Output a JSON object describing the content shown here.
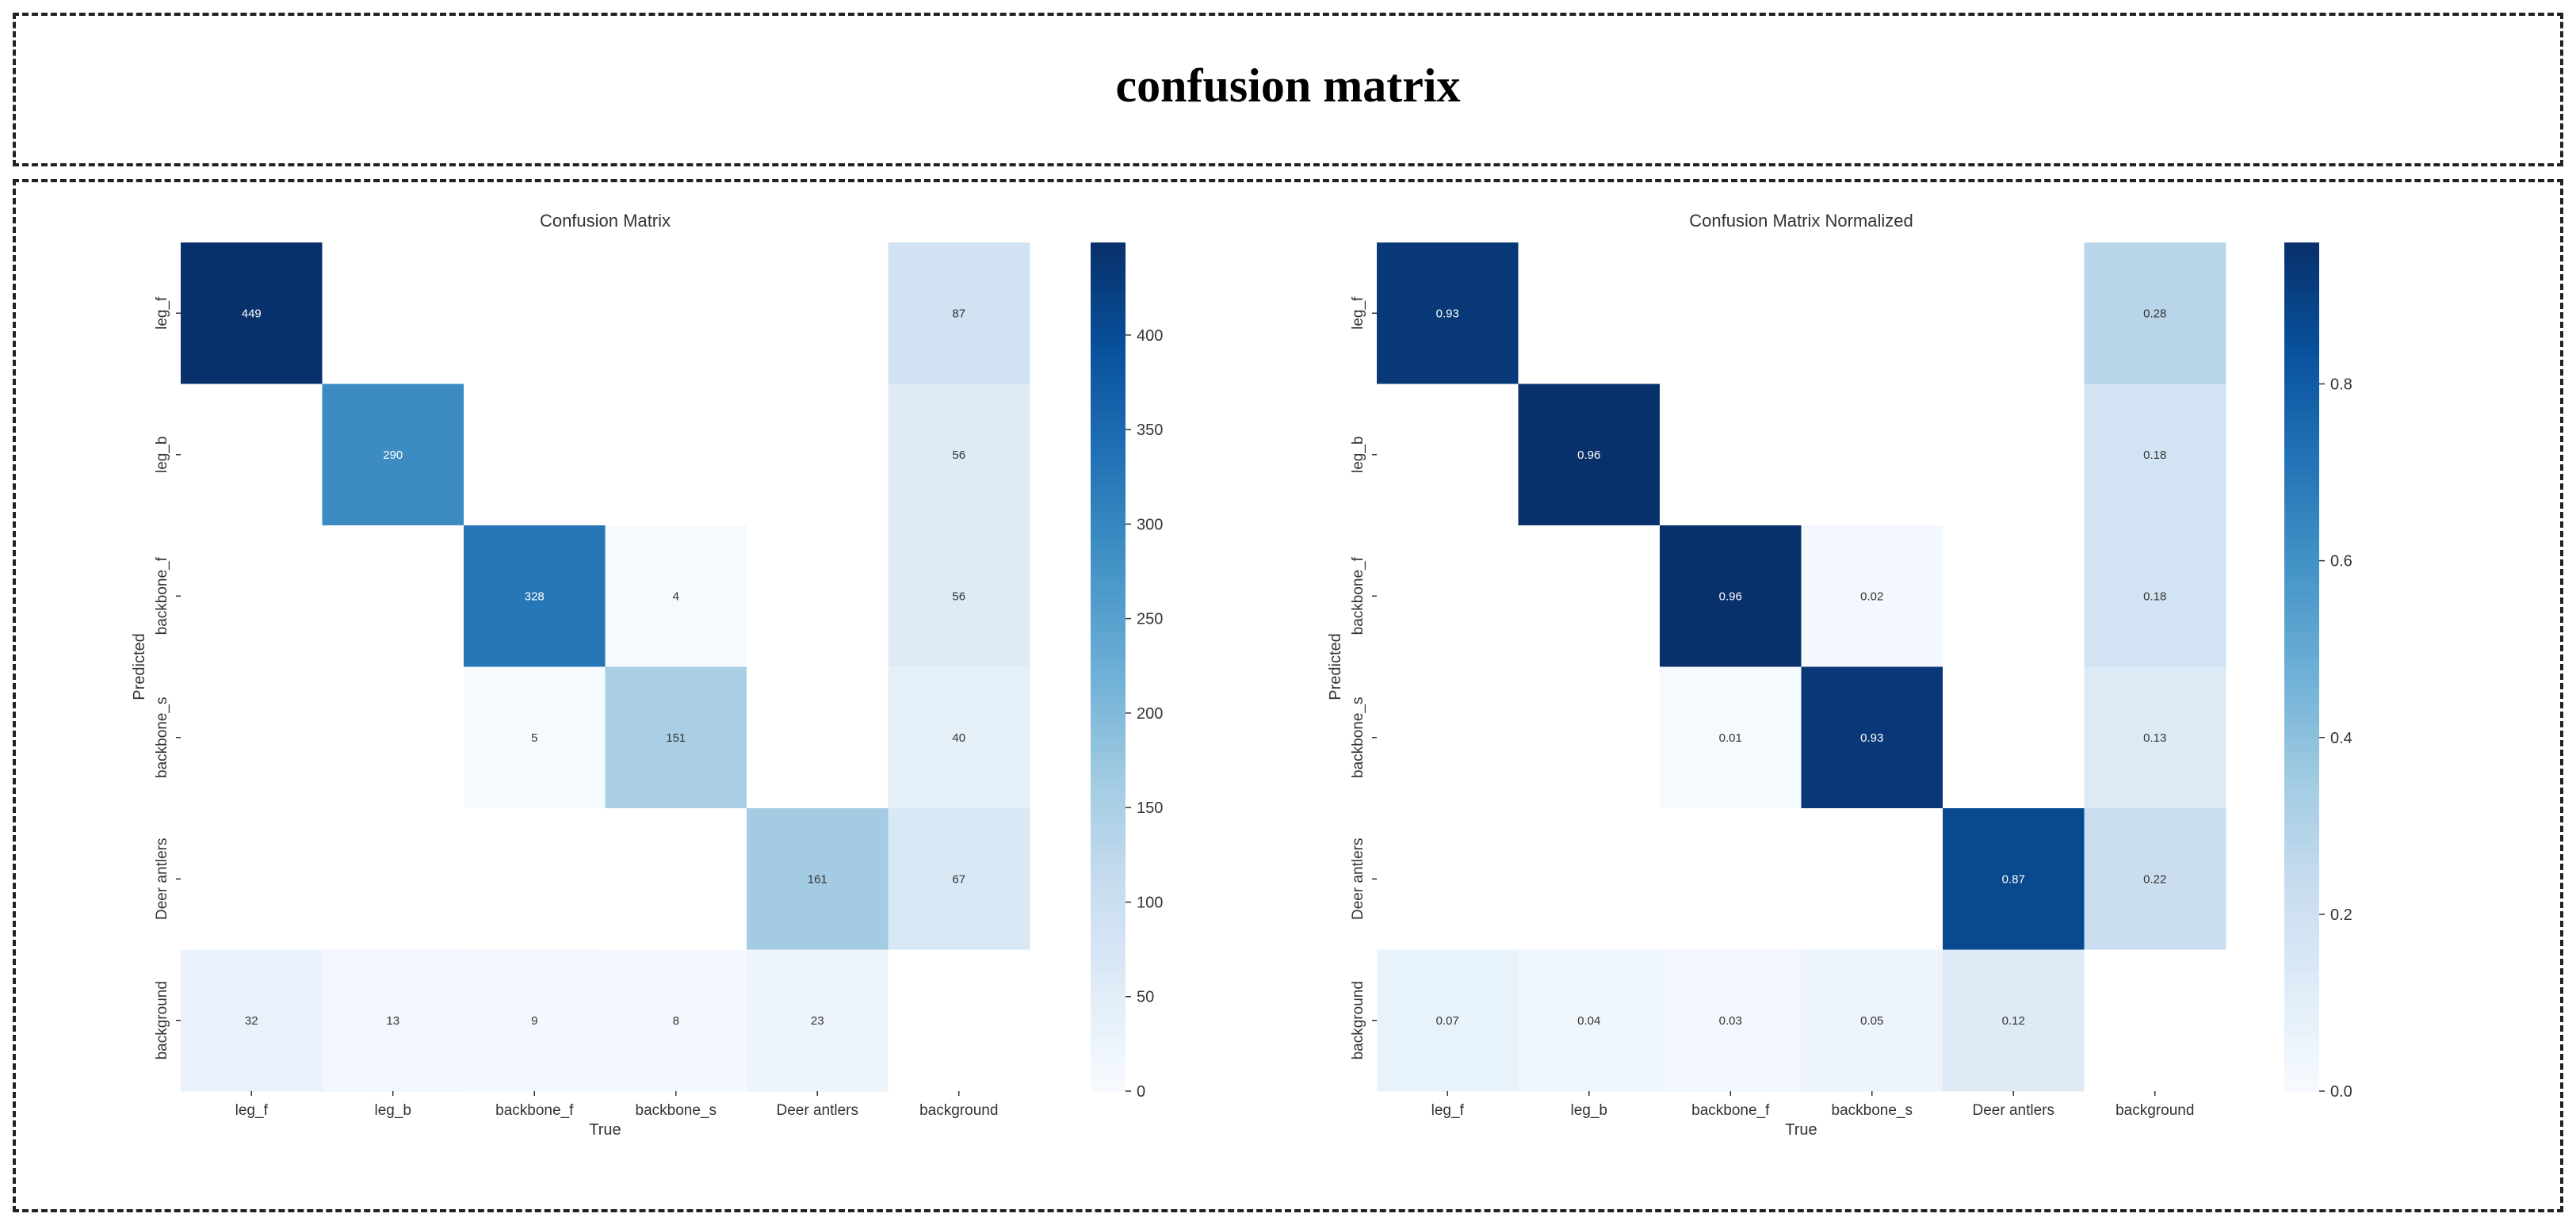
{
  "header": {
    "title": "confusion matrix"
  },
  "colors": {
    "low": "#f7fbff",
    "mid": "#6baed6",
    "high": "#08306b",
    "text": "#333333"
  },
  "chart_data": [
    {
      "type": "heatmap",
      "title": "Confusion Matrix",
      "xlabel": "True",
      "ylabel": "Predicted",
      "x_categories": [
        "leg_f",
        "leg_b",
        "backbone_f",
        "backbone_s",
        "Deer antlers",
        "background"
      ],
      "y_categories": [
        "leg_f",
        "leg_b",
        "backbone_f",
        "backbone_s",
        "Deer antlers",
        "background"
      ],
      "values": [
        [
          449,
          null,
          null,
          null,
          null,
          87
        ],
        [
          null,
          290,
          null,
          null,
          null,
          56
        ],
        [
          null,
          null,
          328,
          4,
          null,
          56
        ],
        [
          null,
          null,
          5,
          151,
          null,
          40
        ],
        [
          null,
          null,
          null,
          null,
          161,
          67
        ],
        [
          32,
          13,
          9,
          8,
          23,
          null
        ]
      ],
      "labels": [
        [
          "449",
          "",
          "",
          "",
          "",
          "87"
        ],
        [
          "",
          "290",
          "",
          "",
          "",
          "56"
        ],
        [
          "",
          "",
          "328",
          "4",
          "",
          "56"
        ],
        [
          "",
          "",
          "5",
          "151",
          "",
          "40"
        ],
        [
          "",
          "",
          "",
          "",
          "161",
          "67"
        ],
        [
          "32",
          "13",
          "9",
          "8",
          "23",
          ""
        ]
      ],
      "vmin": 0,
      "vmax": 449,
      "colorbar_ticks": [
        0,
        50,
        100,
        150,
        200,
        250,
        300,
        350,
        400
      ],
      "colorbar_tick_labels": [
        "0",
        "50",
        "100",
        "150",
        "200",
        "250",
        "300",
        "350",
        "400"
      ]
    },
    {
      "type": "heatmap",
      "title": "Confusion Matrix Normalized",
      "xlabel": "True",
      "ylabel": "Predicted",
      "x_categories": [
        "leg_f",
        "leg_b",
        "backbone_f",
        "backbone_s",
        "Deer antlers",
        "background"
      ],
      "y_categories": [
        "leg_f",
        "leg_b",
        "backbone_f",
        "backbone_s",
        "Deer antlers",
        "background"
      ],
      "values": [
        [
          0.93,
          null,
          null,
          null,
          null,
          0.28
        ],
        [
          null,
          0.96,
          null,
          null,
          null,
          0.18
        ],
        [
          null,
          null,
          0.96,
          0.02,
          null,
          0.18
        ],
        [
          null,
          null,
          0.01,
          0.93,
          null,
          0.13
        ],
        [
          null,
          null,
          null,
          null,
          0.87,
          0.22
        ],
        [
          0.07,
          0.04,
          0.03,
          0.05,
          0.12,
          null
        ]
      ],
      "labels": [
        [
          "0.93",
          "",
          "",
          "",
          "",
          "0.28"
        ],
        [
          "",
          "0.96",
          "",
          "",
          "",
          "0.18"
        ],
        [
          "",
          "",
          "0.96",
          "0.02",
          "",
          "0.18"
        ],
        [
          "",
          "",
          "0.01",
          "0.93",
          "",
          "0.13"
        ],
        [
          "",
          "",
          "",
          "",
          "0.87",
          "0.22"
        ],
        [
          "0.07",
          "0.04",
          "0.03",
          "0.05",
          "0.12",
          ""
        ]
      ],
      "vmin": 0,
      "vmax": 0.96,
      "colorbar_ticks": [
        0,
        0.2,
        0.4,
        0.6,
        0.8
      ],
      "colorbar_tick_labels": [
        "0.0",
        "0.2",
        "0.4",
        "0.6",
        "0.8"
      ]
    }
  ]
}
